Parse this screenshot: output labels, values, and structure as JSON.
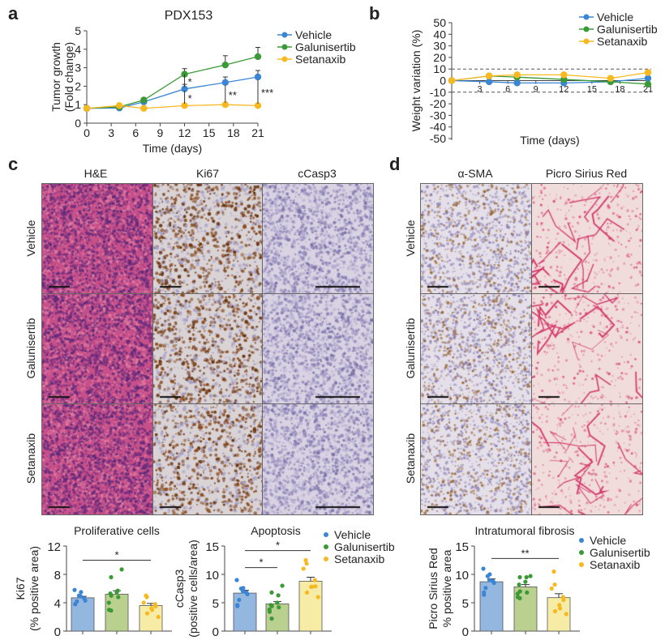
{
  "panels": {
    "a": "a",
    "b": "b",
    "c": "c",
    "d": "d"
  },
  "colors": {
    "Vehicle": "#3b86d4",
    "Galunisertib": "#3a9a35",
    "Setanaxib": "#f7b820",
    "bar_Vehicle": "#94b7e0",
    "bar_Galunisertib": "#b9d08e",
    "bar_Setanaxib": "#f6eca6"
  },
  "histology": {
    "c_columns": [
      "H&E",
      "Ki67",
      "cCasp3"
    ],
    "d_columns": [
      "α-SMA",
      "Picro Sirius Red"
    ],
    "rows": [
      "Vehicle",
      "Galunisertib",
      "Setanaxib"
    ]
  },
  "chart_data": [
    {
      "id": "a",
      "type": "line",
      "title": "PDX153",
      "xlabel": "Time (days)",
      "ylabel": [
        "Tumor growth",
        "(Fold change)"
      ],
      "xlim": [
        0,
        21
      ],
      "ylim": [
        0,
        5
      ],
      "xticks": [
        0,
        3,
        6,
        9,
        12,
        15,
        18,
        21
      ],
      "yticks": [
        0,
        1,
        2,
        3,
        4,
        5
      ],
      "x": [
        0,
        4,
        7,
        12,
        17,
        21
      ],
      "legend": "top-right",
      "series": [
        {
          "name": "Vehicle",
          "values": [
            0.8,
            0.82,
            1.15,
            1.85,
            2.2,
            2.5
          ],
          "err": [
            0,
            0.05,
            0.08,
            0.25,
            0.3,
            0.35
          ]
        },
        {
          "name": "Galunisertib",
          "values": [
            0.8,
            0.88,
            1.25,
            2.65,
            3.15,
            3.6
          ],
          "err": [
            0,
            0.05,
            0.1,
            0.3,
            0.5,
            0.5
          ]
        },
        {
          "name": "Setanaxib",
          "values": [
            0.8,
            0.95,
            0.8,
            0.95,
            1.0,
            0.95
          ],
          "err": [
            0,
            0.05,
            0.05,
            0.05,
            0.1,
            0.1
          ]
        }
      ],
      "annotations": [
        {
          "x": 12,
          "from": 2.65,
          "to": 1.95,
          "text": "*"
        },
        {
          "x": 12,
          "from": 1.75,
          "to": 1.05,
          "text": "*"
        },
        {
          "x": 17,
          "from": 2.05,
          "to": 1.1,
          "text": "**"
        },
        {
          "x": 21,
          "from": 2.35,
          "to": 1.05,
          "text": "***"
        }
      ]
    },
    {
      "id": "b",
      "type": "line",
      "xlabel": "Time (days)",
      "ylabel": [
        "Weight variation (%)"
      ],
      "xlim": [
        0,
        21
      ],
      "ylim": [
        -50,
        50
      ],
      "xticks": [
        3,
        6,
        9,
        12,
        15,
        18,
        21
      ],
      "yticks": [
        -50,
        -40,
        -30,
        -20,
        -10,
        0,
        10,
        20,
        30,
        40,
        50
      ],
      "x": [
        0,
        4,
        7,
        12,
        17,
        21
      ],
      "reference_lines": [
        10,
        -10
      ],
      "legend": "top-right",
      "series": [
        {
          "name": "Vehicle",
          "values": [
            0,
            -1,
            -2,
            -2,
            -1,
            2
          ]
        },
        {
          "name": "Galunisertib",
          "values": [
            0,
            4,
            3,
            1,
            -1,
            -3
          ]
        },
        {
          "name": "Setanaxib",
          "values": [
            0,
            4,
            5,
            5,
            2,
            7
          ]
        }
      ]
    },
    {
      "id": "ki67",
      "type": "bar",
      "title": "Proliferative cells",
      "ylabel": [
        "Ki67",
        "(% positive area)"
      ],
      "ylim": [
        0,
        12
      ],
      "yticks": [
        0,
        4,
        8,
        12
      ],
      "categories": [
        "Vehicle",
        "Galunisertib",
        "Setanaxib"
      ],
      "values": [
        4.7,
        5.2,
        3.6
      ],
      "sem": [
        0.2,
        0.5,
        0.3
      ],
      "points": [
        [
          5.8,
          5.5,
          5.0,
          4.9,
          4.6,
          4.3,
          4.2,
          3.8,
          3.8
        ],
        [
          8.7,
          7.6,
          5.7,
          5.5,
          5.3,
          5.0,
          4.8,
          4.0,
          3.0,
          2.9
        ],
        [
          5.0,
          4.8,
          4.0,
          3.8,
          3.5,
          3.2,
          3.0,
          2.5,
          2.0
        ]
      ],
      "significance": [
        {
          "from": 0,
          "to": 2,
          "text": "*",
          "y": 10
        }
      ]
    },
    {
      "id": "casp3",
      "type": "bar",
      "title": "Apoptosis",
      "ylabel": [
        "cCasp3",
        "(positive cells/area)"
      ],
      "ylim": [
        0,
        15
      ],
      "yticks": [
        0,
        5,
        10,
        15
      ],
      "categories": [
        "Vehicle",
        "Galunisertib",
        "Setanaxib"
      ],
      "values": [
        6.7,
        4.8,
        8.8
      ],
      "sem": [
        0.5,
        0.4,
        0.7
      ],
      "points": [
        [
          9.0,
          7.6,
          7.5,
          7.0,
          6.8,
          6.5,
          5.5,
          4.6,
          4.4
        ],
        [
          8.0,
          6.8,
          6.3,
          5.0,
          4.6,
          4.4,
          4.2,
          3.8,
          3.4,
          2.2
        ],
        [
          12.5,
          11.9,
          11.0,
          9.0,
          7.9,
          7.8,
          7.8,
          6.8,
          6.0
        ]
      ],
      "significance": [
        {
          "from": 0,
          "to": 1,
          "text": "*",
          "y": 11.2
        },
        {
          "from": 0,
          "to": 2,
          "text": "*",
          "y": 14.2
        }
      ],
      "legend": "right"
    },
    {
      "id": "fibrosis",
      "type": "bar",
      "title": "Intratumoral fibrosis",
      "ylabel": [
        "Picro Sirius Red",
        "% positive area"
      ],
      "ylim": [
        0,
        15
      ],
      "yticks": [
        0,
        5,
        10,
        15
      ],
      "categories": [
        "Vehicle",
        "Galunisertib",
        "Setanaxib"
      ],
      "values": [
        8.7,
        7.8,
        5.9
      ],
      "sem": [
        0.5,
        0.4,
        0.7
      ],
      "points": [
        [
          11.0,
          10.0,
          9.7,
          9.0,
          8.8,
          8.5,
          7.6,
          6.8,
          6.4
        ],
        [
          9.7,
          9.5,
          9.5,
          8.7,
          8.2,
          7.0,
          6.8,
          6.6,
          6.0,
          5.8
        ],
        [
          10.5,
          8.2,
          7.5,
          6.0,
          5.5,
          4.6,
          4.0,
          3.5,
          3.0
        ]
      ],
      "significance": [
        {
          "from": 0,
          "to": 2,
          "text": "**",
          "y": 12.8
        }
      ],
      "legend": "right"
    }
  ]
}
